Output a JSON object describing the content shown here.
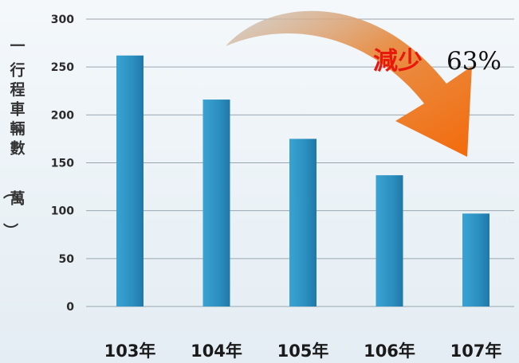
{
  "chart_data": {
    "type": "bar",
    "categories": [
      "103年",
      "104年",
      "105年",
      "106年",
      "107年"
    ],
    "values": [
      262,
      216,
      175,
      137,
      97
    ],
    "ylabel": "一行程車輛數（萬）",
    "ylim": [
      0,
      300
    ],
    "yticks": [
      0,
      50,
      100,
      150,
      200,
      250,
      300
    ],
    "grid": true,
    "annotation": {
      "label": "減少",
      "value": "63%"
    },
    "colors": {
      "bar": "#2f94c3",
      "bar_dark": "#1f76a4",
      "grid": "#9aa6ae",
      "arrow": "#f07a1a",
      "annotation": "#e8190c"
    }
  }
}
